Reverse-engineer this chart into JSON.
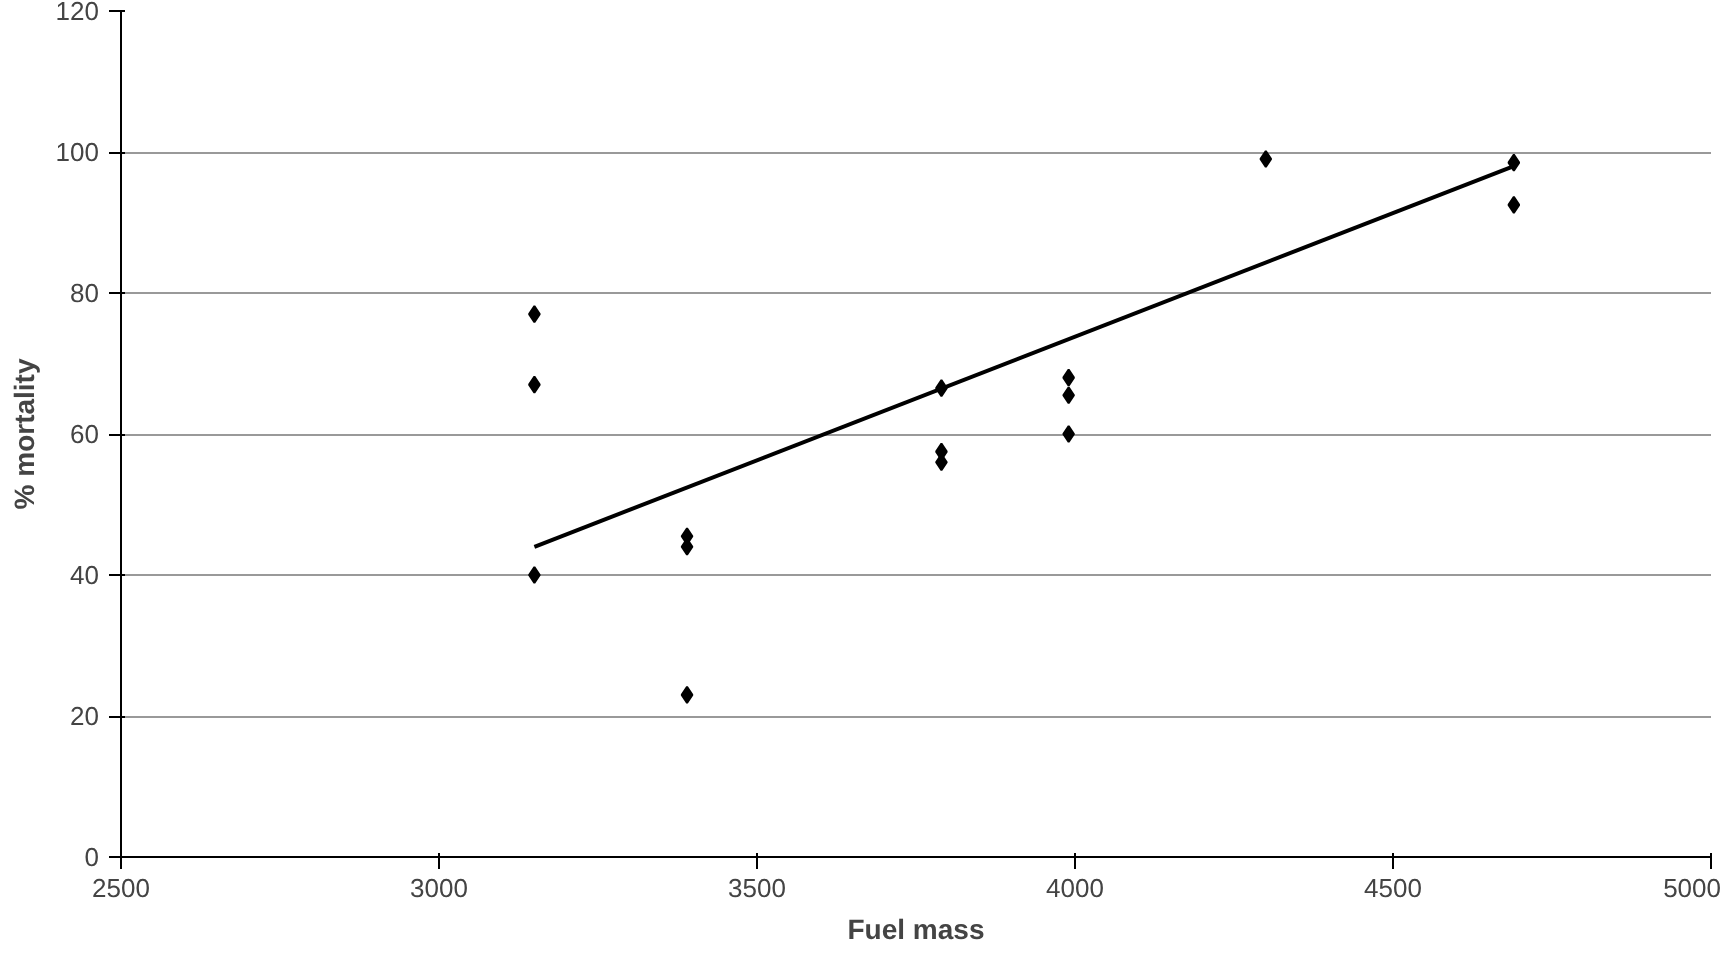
{
  "chart_data": {
    "type": "scatter",
    "xlabel": "Fuel mass",
    "ylabel": "% mortality",
    "xlim": [
      2500,
      5000
    ],
    "ylim": [
      0,
      120
    ],
    "xticks": [
      2500,
      3000,
      3500,
      4000,
      4500,
      5000
    ],
    "yticks": [
      0,
      20,
      40,
      60,
      80,
      100,
      120
    ],
    "grid": "y",
    "series": [
      {
        "marker": "diamond",
        "color": "#000000",
        "x": [
          3150,
          3150,
          3150,
          3390,
          3390,
          3390,
          3790,
          3790,
          3790,
          3990,
          3990,
          3990,
          4300,
          4690,
          4690
        ],
        "values": [
          77,
          67,
          40,
          45.5,
          44,
          23,
          66.5,
          57.5,
          56,
          68,
          65.5,
          60,
          99,
          98.5,
          92.5
        ]
      },
      {
        "type": "line",
        "marker": "none",
        "color": "#000000",
        "x": [
          3150,
          4690
        ],
        "values": [
          44,
          98
        ]
      }
    ]
  }
}
